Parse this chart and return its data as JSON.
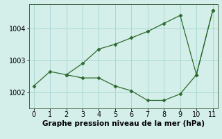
{
  "line1_x": [
    0,
    1,
    2,
    3,
    4,
    5,
    6,
    7,
    8,
    9,
    10,
    11
  ],
  "line1_y": [
    1002.2,
    1002.65,
    1002.55,
    1002.45,
    1002.45,
    1002.2,
    1002.05,
    1001.75,
    1001.75,
    1001.95,
    1002.55,
    1004.55
  ],
  "line2_x": [
    2,
    3,
    4,
    5,
    6,
    7,
    8,
    9,
    10,
    11
  ],
  "line2_y": [
    1002.55,
    1002.9,
    1003.35,
    1003.5,
    1003.7,
    1003.9,
    1004.15,
    1004.4,
    1002.55,
    1004.55
  ],
  "line_color": "#2d6a2d",
  "marker": "D",
  "markersize": 2.5,
  "linewidth": 0.9,
  "xlabel": "Graphe pression niveau de la mer (hPa)",
  "xlim": [
    -0.3,
    11.3
  ],
  "ylim": [
    1001.5,
    1004.75
  ],
  "yticks": [
    1002,
    1003,
    1004
  ],
  "xticks": [
    0,
    1,
    2,
    3,
    4,
    5,
    6,
    7,
    8,
    9,
    10,
    11
  ],
  "grid_color": "#aad8d3",
  "bg_color": "#d4eeea",
  "xlabel_fontsize": 7.5,
  "tick_fontsize": 7.0
}
